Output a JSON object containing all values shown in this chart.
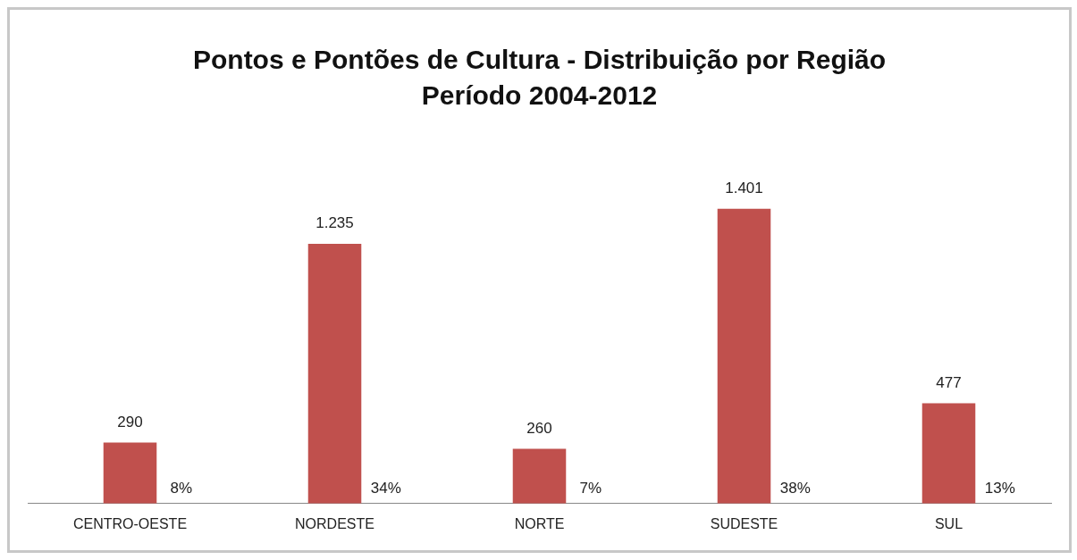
{
  "chart_data": {
    "type": "bar",
    "title": "Pontos e Pontões de Cultura - Distribuição por Região",
    "subtitle": "Período 2004-2012",
    "categories": [
      "CENTRO-OESTE",
      "NORDESTE",
      "NORTE",
      "SUDESTE",
      "SUL"
    ],
    "values": [
      290,
      1235,
      260,
      1401,
      477
    ],
    "value_labels": [
      "290",
      "1.235",
      "260",
      "1.401",
      "477"
    ],
    "color": "#c0504d",
    "annotations": [
      {
        "text": "8%",
        "x": "CENTRO-OESTE",
        "y": 0
      },
      {
        "text": "34%",
        "x": "NORDESTE",
        "y": 0
      },
      {
        "text": "7%",
        "x": "NORTE",
        "y": 0
      },
      {
        "text": "38%",
        "x": "SUDESTE",
        "y": 0
      },
      {
        "text": "13%",
        "x": "SUL",
        "y": 0
      }
    ],
    "grid": false,
    "legend": false,
    "tick_labels": "x"
  }
}
